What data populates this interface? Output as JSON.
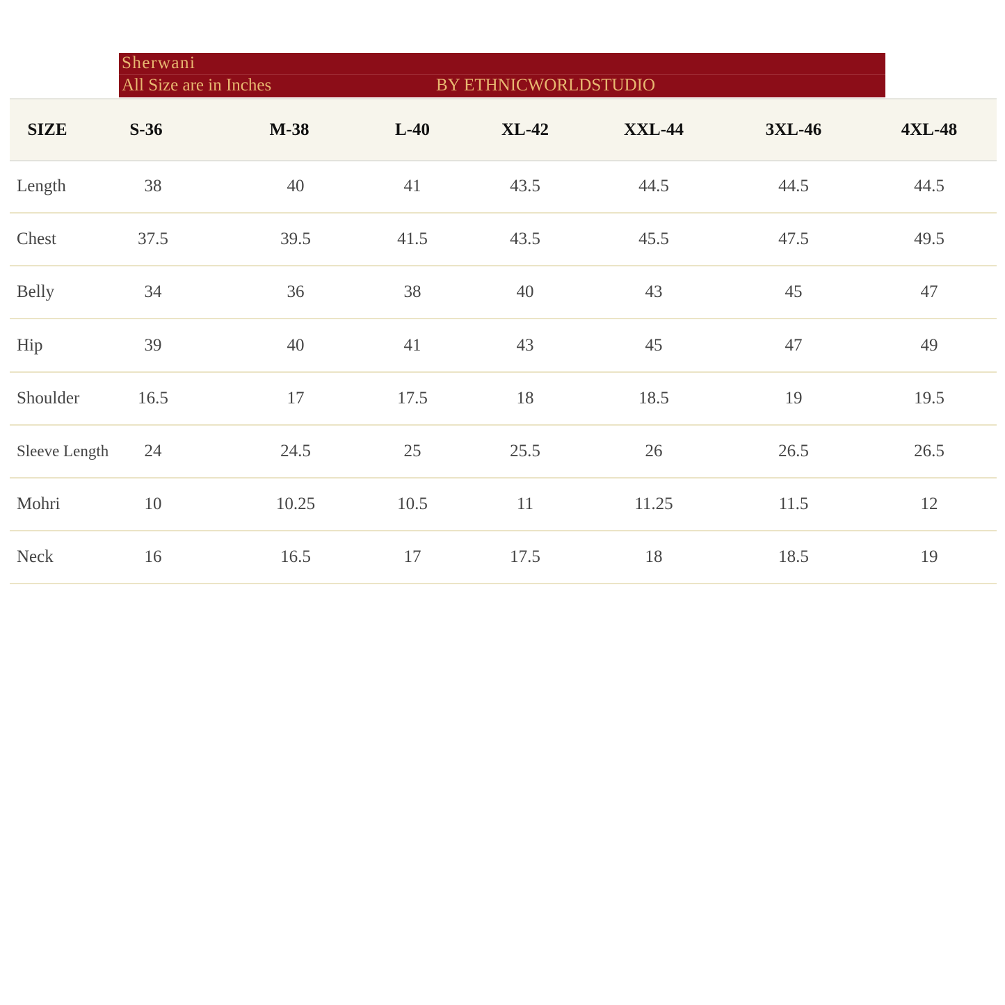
{
  "banner": {
    "title": "Sherwani",
    "note": "All Size are in Inches",
    "brand": "BY ETHNICWORLDSTUDIO",
    "background": "#8c0d18",
    "text_color": "#e8b871"
  },
  "table": {
    "headers": [
      "SIZE",
      "S-36",
      "M-38",
      "L-40",
      "XL-42",
      "XXL-44",
      "3XL-46",
      "4XL-48"
    ],
    "rows": [
      {
        "label": "Length",
        "values": [
          "38",
          "40",
          "41",
          "43.5",
          "44.5",
          "44.5",
          "44.5"
        ]
      },
      {
        "label": "Chest",
        "values": [
          "37.5",
          "39.5",
          "41.5",
          "43.5",
          "45.5",
          "47.5",
          "49.5"
        ]
      },
      {
        "label": "Belly",
        "values": [
          "34",
          "36",
          "38",
          "40",
          "43",
          "45",
          "47"
        ]
      },
      {
        "label": "Hip",
        "values": [
          "39",
          "40",
          "41",
          "43",
          "45",
          "47",
          "49"
        ]
      },
      {
        "label": "Shoulder",
        "values": [
          "16.5",
          "17",
          "17.5",
          "18",
          "18.5",
          "19",
          "19.5"
        ]
      },
      {
        "label": "Sleeve Length",
        "values": [
          "24",
          "24.5",
          "25",
          "25.5",
          "26",
          "26.5",
          "26.5"
        ]
      },
      {
        "label": "Mohri",
        "values": [
          "10",
          "10.25",
          "10.5",
          "11",
          "11.25",
          "11.5",
          "12"
        ]
      },
      {
        "label": "Neck",
        "values": [
          "16",
          "16.5",
          "17",
          "17.5",
          "18",
          "18.5",
          "19"
        ]
      }
    ]
  }
}
